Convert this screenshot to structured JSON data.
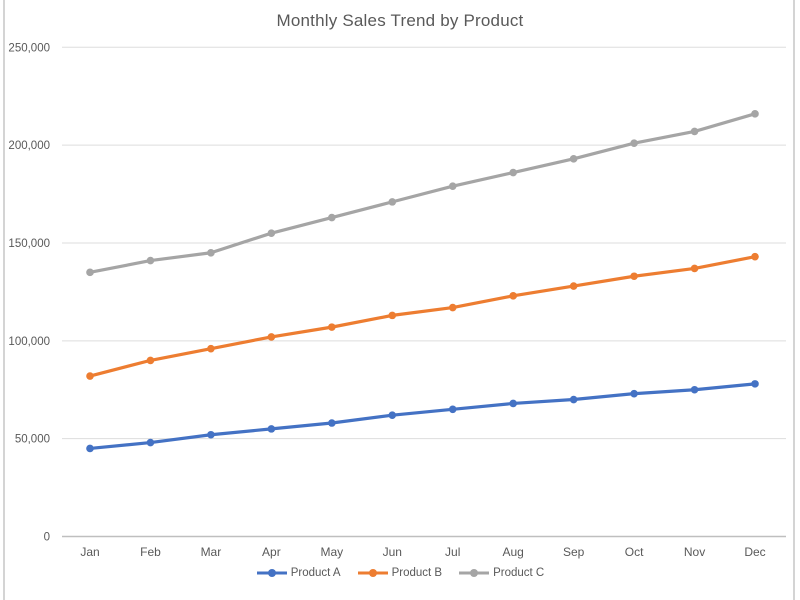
{
  "page": {
    "background": "#ffffff",
    "edge_border_color": "#d4d4d4"
  },
  "chart_data": {
    "type": "line",
    "title": "Monthly Sales Trend by Product",
    "xlabel": "",
    "ylabel": "",
    "categories": [
      "Jan",
      "Feb",
      "Mar",
      "Apr",
      "May",
      "Jun",
      "Jul",
      "Aug",
      "Sep",
      "Oct",
      "Nov",
      "Dec"
    ],
    "series": [
      {
        "name": "Product A",
        "color": "#4472C4",
        "values": [
          45000,
          48000,
          52000,
          55000,
          58000,
          62000,
          65000,
          68000,
          70000,
          73000,
          75000,
          78000
        ]
      },
      {
        "name": "Product B",
        "color": "#ED7D31",
        "values": [
          82000,
          90000,
          96000,
          102000,
          107000,
          113000,
          117000,
          123000,
          128000,
          133000,
          137000,
          143000
        ]
      },
      {
        "name": "Product C",
        "color": "#A5A5A5",
        "values": [
          135000,
          141000,
          145000,
          155000,
          163000,
          171000,
          179000,
          186000,
          193000,
          201000,
          207000,
          216000
        ]
      }
    ],
    "ylim": [
      0,
      250000
    ],
    "y_ticks": [
      0,
      50000,
      100000,
      150000,
      200000,
      250000
    ],
    "y_tick_labels": [
      "0",
      "50,000",
      "100,000",
      "150,000",
      "200,000",
      "250,000"
    ],
    "grid": true,
    "marker": "circle",
    "legend_position": "bottom",
    "text_color": "#595959",
    "gridline_color": "#dddddd",
    "axis_line_color": "#bfbfbf"
  }
}
